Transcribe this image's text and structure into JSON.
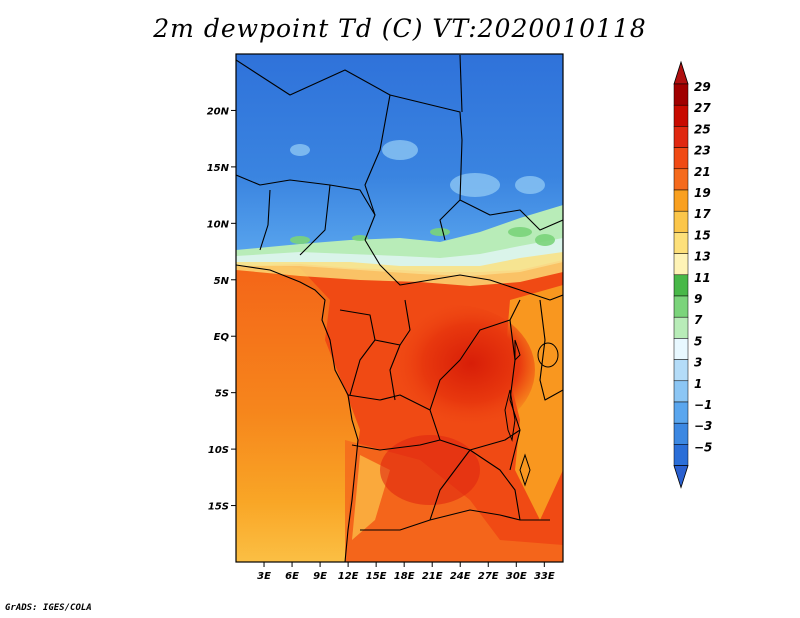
{
  "title": "2m dewpoint Td (C) VT:2020010118",
  "footer": "GrADS: IGES/COLA",
  "map": {
    "variable": "2m dewpoint",
    "units": "C",
    "valid_time": "2020010118",
    "lat_range": [
      -20,
      25
    ],
    "lon_range": [
      0,
      35
    ],
    "lat_ticks": [
      {
        "value": 20,
        "label": "20N"
      },
      {
        "value": 15,
        "label": "15N"
      },
      {
        "value": 10,
        "label": "10N"
      },
      {
        "value": 5,
        "label": "5N"
      },
      {
        "value": 0,
        "label": "EQ"
      },
      {
        "value": -5,
        "label": "5S"
      },
      {
        "value": -10,
        "label": "10S"
      },
      {
        "value": -15,
        "label": "15S"
      }
    ],
    "lon_ticks": [
      {
        "value": 3,
        "label": "3E"
      },
      {
        "value": 6,
        "label": "6E"
      },
      {
        "value": 9,
        "label": "9E"
      },
      {
        "value": 12,
        "label": "12E"
      },
      {
        "value": 15,
        "label": "15E"
      },
      {
        "value": 18,
        "label": "18E"
      },
      {
        "value": 21,
        "label": "21E"
      },
      {
        "value": 24,
        "label": "24E"
      },
      {
        "value": 27,
        "label": "27E"
      },
      {
        "value": 30,
        "label": "30E"
      },
      {
        "value": 33,
        "label": "33E"
      }
    ]
  },
  "colorbar": {
    "levels": [
      {
        "label": "29",
        "color": "#a00000"
      },
      {
        "label": "27",
        "color": "#c80a00"
      },
      {
        "label": "25",
        "color": "#e02810"
      },
      {
        "label": "23",
        "color": "#f04a14"
      },
      {
        "label": "21",
        "color": "#f56a1c"
      },
      {
        "label": "19",
        "color": "#f9a020"
      },
      {
        "label": "17",
        "color": "#fbc64a"
      },
      {
        "label": "15",
        "color": "#fde07a"
      },
      {
        "label": "13",
        "color": "#fef3b6"
      },
      {
        "label": "11",
        "color": "#48b848"
      },
      {
        "label": "9",
        "color": "#7bd47b"
      },
      {
        "label": "7",
        "color": "#b8ecb8"
      },
      {
        "label": "5",
        "color": "#e8f8ff"
      },
      {
        "label": "3",
        "color": "#b4dcf8"
      },
      {
        "label": "1",
        "color": "#8cc6f4"
      },
      {
        "label": "−1",
        "color": "#5aa6ee"
      },
      {
        "label": "−3",
        "color": "#3c88e2"
      },
      {
        "label": "−5",
        "color": "#2a6ed8"
      }
    ],
    "top_cap_color": "#b01010",
    "bottom_cap_color": "#2a60d0"
  }
}
